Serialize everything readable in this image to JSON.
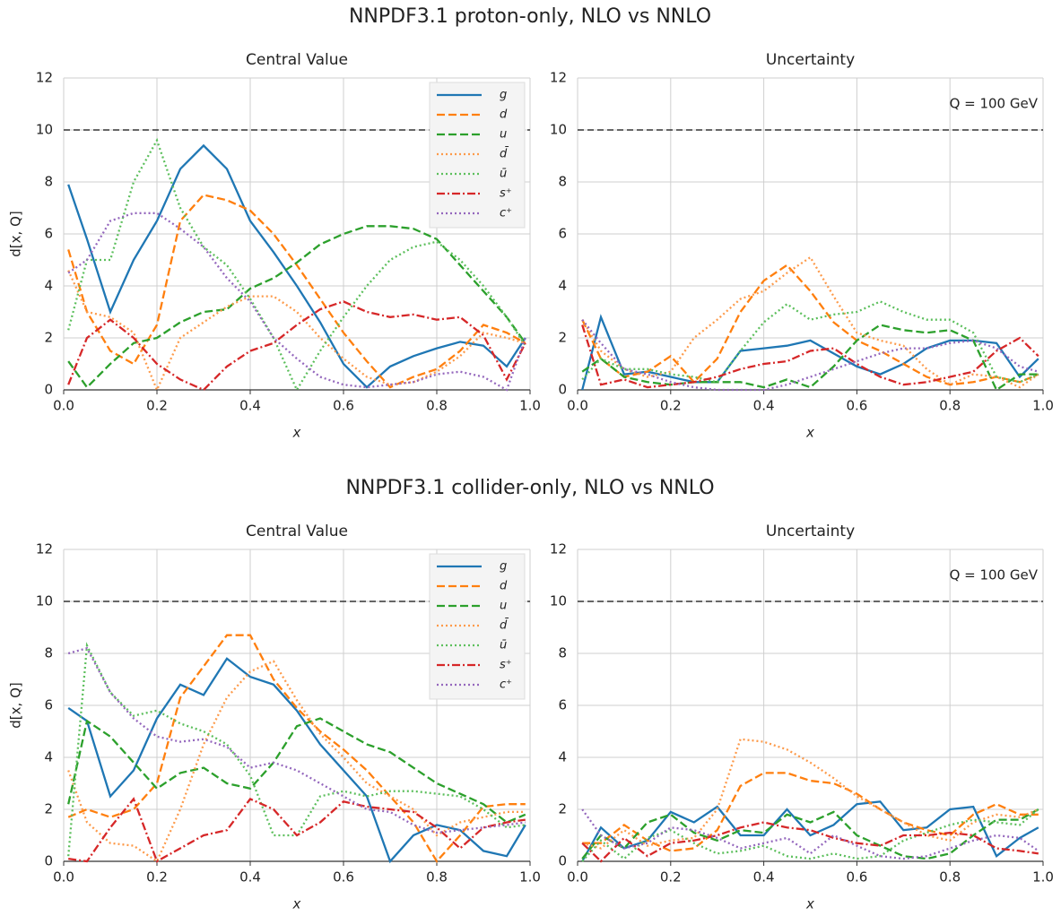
{
  "chart_data": [
    {
      "type": "line",
      "suptitle": "NNPDF3.1 proton-only, NLO vs NNLO",
      "title": "Central Value",
      "xlabel": "x",
      "ylabel": "d[x, Q]",
      "hline": 10,
      "legend": "upper right",
      "xlim": [
        0,
        1
      ],
      "ylim": [
        0,
        12
      ],
      "xticks": [
        {
          "value": 0,
          "label": "0.0"
        },
        0.2,
        0.4,
        0.6,
        0.8,
        {
          "value": 1,
          "label": "1.0"
        }
      ],
      "yticks": [
        0,
        2,
        4,
        6,
        8,
        10,
        12
      ],
      "grid": true,
      "x": [
        0.01,
        0.05,
        0.1,
        0.15,
        0.2,
        0.25,
        0.3,
        0.35,
        0.4,
        0.45,
        0.5,
        0.55,
        0.6,
        0.65,
        0.7,
        0.75,
        0.8,
        0.85,
        0.9,
        0.95,
        0.99
      ],
      "series": [
        {
          "name": "g",
          "color": "#1f77b4",
          "linestyle": "solid",
          "values": [
            7.9,
            5.8,
            3.0,
            5.0,
            6.5,
            8.5,
            9.4,
            8.5,
            6.5,
            5.3,
            4.0,
            2.6,
            1.0,
            0.1,
            0.9,
            1.3,
            1.6,
            1.85,
            1.7,
            0.9,
            2.0
          ]
        },
        {
          "name": "d",
          "color": "#ff7f0e",
          "linestyle": "dashed",
          "values": [
            5.4,
            3.0,
            1.5,
            1.0,
            2.5,
            6.5,
            7.5,
            7.3,
            6.9,
            6.0,
            4.8,
            3.5,
            2.2,
            1.1,
            0.1,
            0.5,
            0.8,
            1.5,
            2.5,
            2.2,
            1.8
          ]
        },
        {
          "name": "u",
          "color": "#2ca02c",
          "linestyle": "dashed",
          "values": [
            1.1,
            0.1,
            1.0,
            1.8,
            2.0,
            2.6,
            3.0,
            3.1,
            3.9,
            4.3,
            4.9,
            5.6,
            6.0,
            6.3,
            6.3,
            6.2,
            5.8,
            4.8,
            3.8,
            2.8,
            1.8
          ]
        },
        {
          "name": "d̄",
          "color": "#fd9a4a",
          "linestyle": "dotted",
          "values": [
            4.6,
            3.0,
            2.8,
            2.2,
            0.0,
            2.0,
            2.6,
            3.2,
            3.6,
            3.6,
            3.0,
            2.0,
            1.2,
            0.5,
            0.2,
            0.3,
            0.7,
            1.3,
            2.2,
            2.0,
            1.8
          ]
        },
        {
          "name": "ū",
          "color": "#5cbf5c",
          "linestyle": "dotted",
          "values": [
            2.3,
            5.0,
            5.0,
            8.0,
            9.6,
            7.0,
            5.5,
            4.8,
            3.5,
            2.0,
            0.0,
            1.5,
            2.8,
            4.0,
            5.0,
            5.5,
            5.7,
            5.0,
            4.0,
            2.8,
            1.7
          ]
        },
        {
          "name": "s⁺",
          "color": "#d62728",
          "linestyle": "dashdot",
          "values": [
            0.2,
            2.0,
            2.7,
            2.0,
            1.0,
            0.4,
            0.0,
            0.9,
            1.5,
            1.8,
            2.5,
            3.1,
            3.4,
            3.0,
            2.8,
            2.9,
            2.7,
            2.8,
            2.1,
            0.4,
            1.8
          ]
        },
        {
          "name": "c⁺",
          "color": "#9467bd",
          "linestyle": "dotted",
          "values": [
            4.5,
            5.0,
            6.5,
            6.8,
            6.8,
            6.2,
            5.5,
            4.3,
            3.4,
            2.0,
            1.2,
            0.5,
            0.2,
            0.1,
            0.2,
            0.3,
            0.6,
            0.7,
            0.5,
            0.0,
            2.0
          ]
        }
      ]
    },
    {
      "type": "line",
      "title": "Uncertainty",
      "xlabel": "x",
      "hline": 10,
      "annotation": "Q = 100 GeV",
      "xlim": [
        0,
        1
      ],
      "ylim": [
        0,
        12
      ],
      "xticks": [
        {
          "value": 0,
          "label": "0.0"
        },
        0.2,
        0.4,
        0.6,
        0.8,
        {
          "value": 1,
          "label": "1.0"
        }
      ],
      "yticks": [
        0,
        2,
        4,
        6,
        8,
        10,
        12
      ],
      "grid": true,
      "x": [
        0.01,
        0.05,
        0.1,
        0.15,
        0.2,
        0.25,
        0.3,
        0.35,
        0.4,
        0.45,
        0.5,
        0.55,
        0.6,
        0.65,
        0.7,
        0.75,
        0.8,
        0.85,
        0.9,
        0.95,
        0.99
      ],
      "series": [
        {
          "color": "#1f77b4",
          "linestyle": "solid",
          "values": [
            0.0,
            2.8,
            0.6,
            0.7,
            0.5,
            0.3,
            0.3,
            1.5,
            1.6,
            1.7,
            1.9,
            1.4,
            0.9,
            0.6,
            1.0,
            1.6,
            1.9,
            1.9,
            1.8,
            0.5,
            1.2
          ]
        },
        {
          "color": "#ff7f0e",
          "linestyle": "dashed",
          "values": [
            2.7,
            1.2,
            0.5,
            0.7,
            1.3,
            0.3,
            1.2,
            3.0,
            4.2,
            4.8,
            3.8,
            2.6,
            1.9,
            1.5,
            1.0,
            0.5,
            0.2,
            0.3,
            0.5,
            0.3,
            0.6
          ]
        },
        {
          "color": "#2ca02c",
          "linestyle": "dashed",
          "values": [
            0.7,
            1.2,
            0.5,
            0.3,
            0.2,
            0.3,
            0.3,
            0.3,
            0.1,
            0.4,
            0.1,
            0.9,
            1.9,
            2.5,
            2.3,
            2.2,
            2.3,
            1.9,
            0.0,
            0.6,
            0.6
          ]
        },
        {
          "color": "#fd9a4a",
          "linestyle": "dotted",
          "values": [
            2.7,
            1.5,
            0.8,
            0.5,
            0.7,
            2.0,
            2.7,
            3.5,
            3.8,
            4.5,
            5.1,
            3.6,
            2.2,
            1.9,
            1.7,
            0.8,
            0.2,
            0.6,
            0.5,
            0.1,
            0.6
          ]
        },
        {
          "color": "#5cbf5c",
          "linestyle": "dotted",
          "values": [
            0.4,
            1.2,
            0.8,
            0.8,
            0.6,
            0.5,
            0.3,
            1.5,
            2.6,
            3.3,
            2.7,
            2.9,
            3.0,
            3.4,
            3.0,
            2.7,
            2.7,
            2.2,
            0.5,
            0.3,
            0.6
          ]
        },
        {
          "color": "#d62728",
          "linestyle": "dashdot",
          "values": [
            2.5,
            0.2,
            0.4,
            0.1,
            0.2,
            0.3,
            0.5,
            0.8,
            1.0,
            1.1,
            1.5,
            1.6,
            1.0,
            0.5,
            0.2,
            0.3,
            0.5,
            0.7,
            1.5,
            2.0,
            1.3
          ]
        },
        {
          "color": "#9467bd",
          "linestyle": "dotted",
          "values": [
            2.7,
            1.8,
            0.8,
            0.6,
            0.3,
            0.1,
            0.0,
            0.0,
            0.0,
            0.2,
            0.5,
            0.8,
            1.1,
            1.4,
            1.6,
            1.6,
            1.8,
            1.9,
            1.6,
            0.9,
            0.7
          ]
        }
      ]
    },
    {
      "type": "line",
      "suptitle": "NNPDF3.1 collider-only, NLO vs NNLO",
      "title": "Central Value",
      "xlabel": "x",
      "ylabel": "d[x, Q]",
      "hline": 10,
      "legend": "upper right",
      "xlim": [
        0,
        1
      ],
      "ylim": [
        0,
        12
      ],
      "xticks": [
        {
          "value": 0,
          "label": "0.0"
        },
        0.2,
        0.4,
        0.6,
        0.8,
        {
          "value": 1,
          "label": "1.0"
        }
      ],
      "yticks": [
        0,
        2,
        4,
        6,
        8,
        10,
        12
      ],
      "grid": true,
      "x": [
        0.01,
        0.05,
        0.1,
        0.15,
        0.2,
        0.25,
        0.3,
        0.35,
        0.4,
        0.45,
        0.5,
        0.55,
        0.6,
        0.65,
        0.7,
        0.75,
        0.8,
        0.85,
        0.9,
        0.95,
        0.99
      ],
      "series": [
        {
          "name": "g",
          "color": "#1f77b4",
          "linestyle": "solid",
          "values": [
            5.9,
            5.4,
            2.5,
            3.5,
            5.5,
            6.8,
            6.4,
            7.8,
            7.1,
            6.8,
            5.8,
            4.5,
            3.5,
            2.5,
            0.0,
            1.0,
            1.4,
            1.2,
            0.4,
            0.2,
            1.4
          ]
        },
        {
          "name": "d",
          "color": "#ff7f0e",
          "linestyle": "dashed",
          "values": [
            1.7,
            2.0,
            1.7,
            2.0,
            3.0,
            6.3,
            7.5,
            8.7,
            8.7,
            7.0,
            5.9,
            5.0,
            4.3,
            3.5,
            2.5,
            1.5,
            0.0,
            1.0,
            2.1,
            2.2,
            2.2
          ]
        },
        {
          "name": "u",
          "color": "#2ca02c",
          "linestyle": "dashed",
          "values": [
            2.2,
            5.4,
            4.8,
            3.8,
            2.8,
            3.4,
            3.6,
            3.0,
            2.8,
            3.8,
            5.2,
            5.5,
            5.0,
            4.5,
            4.2,
            3.6,
            3.0,
            2.6,
            2.2,
            1.5,
            1.8
          ]
        },
        {
          "name": "d̄",
          "color": "#fd9a4a",
          "linestyle": "dotted",
          "values": [
            3.5,
            1.5,
            0.7,
            0.6,
            0.0,
            2.0,
            4.5,
            6.3,
            7.3,
            7.7,
            6.2,
            4.9,
            4.0,
            3.0,
            2.5,
            2.0,
            1.0,
            1.5,
            1.7,
            1.9,
            1.9
          ]
        },
        {
          "name": "ū",
          "color": "#5cbf5c",
          "linestyle": "dotted",
          "values": [
            0.2,
            8.3,
            6.5,
            5.6,
            5.8,
            5.3,
            5.0,
            4.5,
            3.3,
            1.0,
            1.0,
            2.5,
            2.7,
            2.5,
            2.7,
            2.7,
            2.6,
            2.5,
            2.0,
            1.3,
            1.4
          ]
        },
        {
          "name": "s⁺",
          "color": "#d62728",
          "linestyle": "dashdot",
          "values": [
            0.1,
            0.0,
            1.3,
            2.4,
            0.0,
            0.5,
            1.0,
            1.2,
            2.4,
            2.0,
            1.0,
            1.5,
            2.3,
            2.1,
            2.0,
            1.9,
            1.3,
            0.5,
            1.3,
            1.5,
            1.6
          ]
        },
        {
          "name": "c⁺",
          "color": "#9467bd",
          "linestyle": "dotted",
          "values": [
            8.0,
            8.2,
            6.5,
            5.5,
            4.8,
            4.6,
            4.7,
            4.4,
            3.6,
            3.8,
            3.5,
            3.0,
            2.5,
            2.0,
            1.9,
            1.4,
            1.1,
            1.2,
            1.3,
            1.4,
            1.5
          ]
        }
      ]
    },
    {
      "type": "line",
      "title": "Uncertainty",
      "xlabel": "x",
      "hline": 10,
      "annotation": "Q = 100 GeV",
      "xlim": [
        0,
        1
      ],
      "ylim": [
        0,
        12
      ],
      "xticks": [
        {
          "value": 0,
          "label": "0.0"
        },
        0.2,
        0.4,
        0.6,
        0.8,
        {
          "value": 1,
          "label": "1.0"
        }
      ],
      "yticks": [
        0,
        2,
        4,
        6,
        8,
        10,
        12
      ],
      "grid": true,
      "x": [
        0.01,
        0.05,
        0.1,
        0.15,
        0.2,
        0.25,
        0.3,
        0.35,
        0.4,
        0.45,
        0.5,
        0.55,
        0.6,
        0.65,
        0.7,
        0.75,
        0.8,
        0.85,
        0.9,
        0.95,
        0.99
      ],
      "series": [
        {
          "color": "#1f77b4",
          "linestyle": "solid",
          "values": [
            0.0,
            1.3,
            0.5,
            0.8,
            1.9,
            1.5,
            2.1,
            1.0,
            1.0,
            2.0,
            1.0,
            1.4,
            2.2,
            2.3,
            1.2,
            1.3,
            2.0,
            2.1,
            0.2,
            0.9,
            1.3
          ]
        },
        {
          "color": "#ff7f0e",
          "linestyle": "dashed",
          "values": [
            0.7,
            0.7,
            1.4,
            0.8,
            0.4,
            0.5,
            1.2,
            2.9,
            3.4,
            3.4,
            3.1,
            3.0,
            2.6,
            2.0,
            1.5,
            1.2,
            1.0,
            1.8,
            2.2,
            1.8,
            1.8
          ]
        },
        {
          "color": "#2ca02c",
          "linestyle": "dashed",
          "values": [
            0.1,
            1.0,
            0.5,
            1.5,
            1.8,
            1.1,
            0.8,
            1.2,
            1.1,
            1.8,
            1.5,
            1.9,
            1.0,
            0.6,
            0.2,
            0.1,
            0.3,
            1.0,
            1.6,
            1.6,
            2.0
          ]
        },
        {
          "color": "#fd9a4a",
          "linestyle": "dotted",
          "values": [
            0.7,
            0.5,
            1.2,
            0.6,
            0.8,
            0.9,
            2.0,
            4.7,
            4.6,
            4.3,
            3.8,
            3.2,
            2.5,
            2.0,
            1.5,
            1.0,
            0.8,
            1.5,
            1.8,
            1.7,
            2.0
          ]
        },
        {
          "color": "#5cbf5c",
          "linestyle": "dotted",
          "values": [
            0.0,
            0.8,
            0.1,
            0.9,
            1.2,
            0.7,
            0.3,
            0.4,
            0.6,
            0.2,
            0.1,
            0.3,
            0.1,
            0.2,
            0.8,
            1.1,
            1.4,
            1.6,
            1.5,
            1.4,
            2.0
          ]
        },
        {
          "color": "#d62728",
          "linestyle": "dashdot",
          "values": [
            0.7,
            0.0,
            0.9,
            0.2,
            0.7,
            0.8,
            1.0,
            1.3,
            1.5,
            1.3,
            1.2,
            0.9,
            0.7,
            0.6,
            1.0,
            1.0,
            1.1,
            1.0,
            0.5,
            0.4,
            0.3
          ]
        },
        {
          "color": "#9467bd",
          "linestyle": "dotted",
          "values": [
            2.0,
            1.0,
            0.5,
            0.7,
            1.3,
            1.2,
            0.9,
            0.5,
            0.7,
            0.9,
            0.3,
            1.0,
            0.6,
            0.2,
            0.1,
            0.2,
            0.5,
            0.8,
            1.0,
            0.9,
            0.4
          ]
        }
      ]
    }
  ]
}
